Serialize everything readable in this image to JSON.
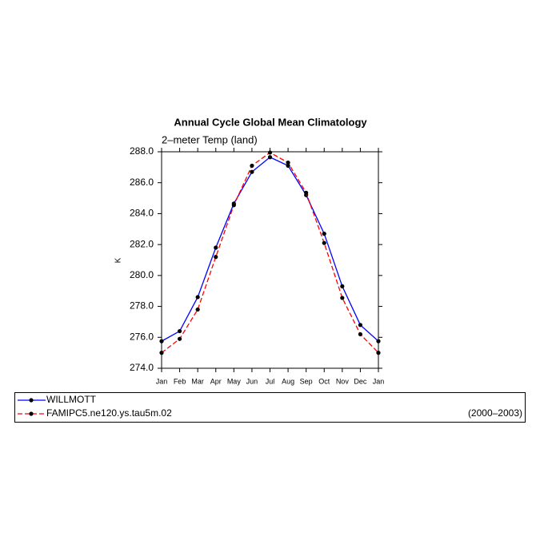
{
  "chart_data": {
    "type": "line",
    "title": "Annual Cycle Global Mean Climatology",
    "subtitle": "2–meter Temp (land)",
    "y_label": "K",
    "period": "(2000–2003)",
    "categories": [
      "Jan",
      "Feb",
      "Mar",
      "Apr",
      "May",
      "Jun",
      "Jul",
      "Aug",
      "Sep",
      "Oct",
      "Nov",
      "Dec",
      "Jan"
    ],
    "series": [
      {
        "name": "WILLMOTT",
        "color": "#0000ff",
        "dash": "solid",
        "values": [
          275.75,
          276.4,
          278.6,
          281.8,
          284.65,
          286.7,
          287.65,
          287.1,
          285.2,
          282.7,
          279.3,
          276.8,
          275.75
        ]
      },
      {
        "name": "FAMIPC5.ne120.ys.tau5m.02",
        "color": "#ff0000",
        "dash": "dashed",
        "values": [
          275.0,
          275.9,
          277.8,
          281.2,
          284.55,
          287.1,
          287.95,
          287.3,
          285.35,
          282.1,
          278.55,
          276.2,
          275.0
        ]
      }
    ],
    "ylim": [
      274,
      288
    ],
    "yticks": [
      {
        "value": 274,
        "label": "274.0"
      },
      {
        "value": 276,
        "label": "276.0"
      },
      {
        "value": 278,
        "label": "278.0"
      },
      {
        "value": 280,
        "label": "280.0"
      },
      {
        "value": 282,
        "label": "282.0"
      },
      {
        "value": 284,
        "label": "284.0"
      },
      {
        "value": 286,
        "label": "286.0"
      },
      {
        "value": 288,
        "label": "288.0"
      }
    ]
  }
}
